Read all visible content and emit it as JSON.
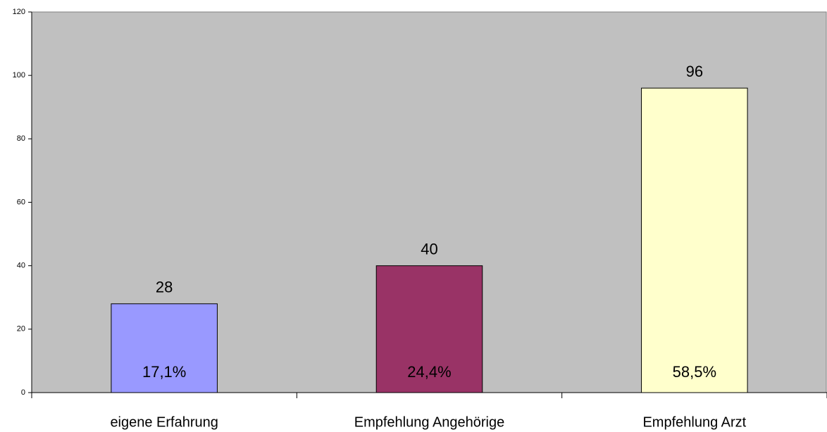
{
  "chart_data": {
    "type": "bar",
    "categories": [
      "eigene Erfahrung",
      "Empfehlung Angehörige",
      "Empfehlung Arzt"
    ],
    "values": [
      28,
      40,
      96
    ],
    "colors": [
      "#9999ff",
      "#993366",
      "#ffffcc"
    ],
    "shares": [
      17.1,
      24.4,
      58.5
    ],
    "share_labels": [
      "17,1%",
      "24,4%",
      "58,5%"
    ],
    "ylim": [
      0,
      120
    ],
    "yticks": [
      0,
      20,
      40,
      60,
      80,
      100,
      120
    ],
    "grid": false
  }
}
